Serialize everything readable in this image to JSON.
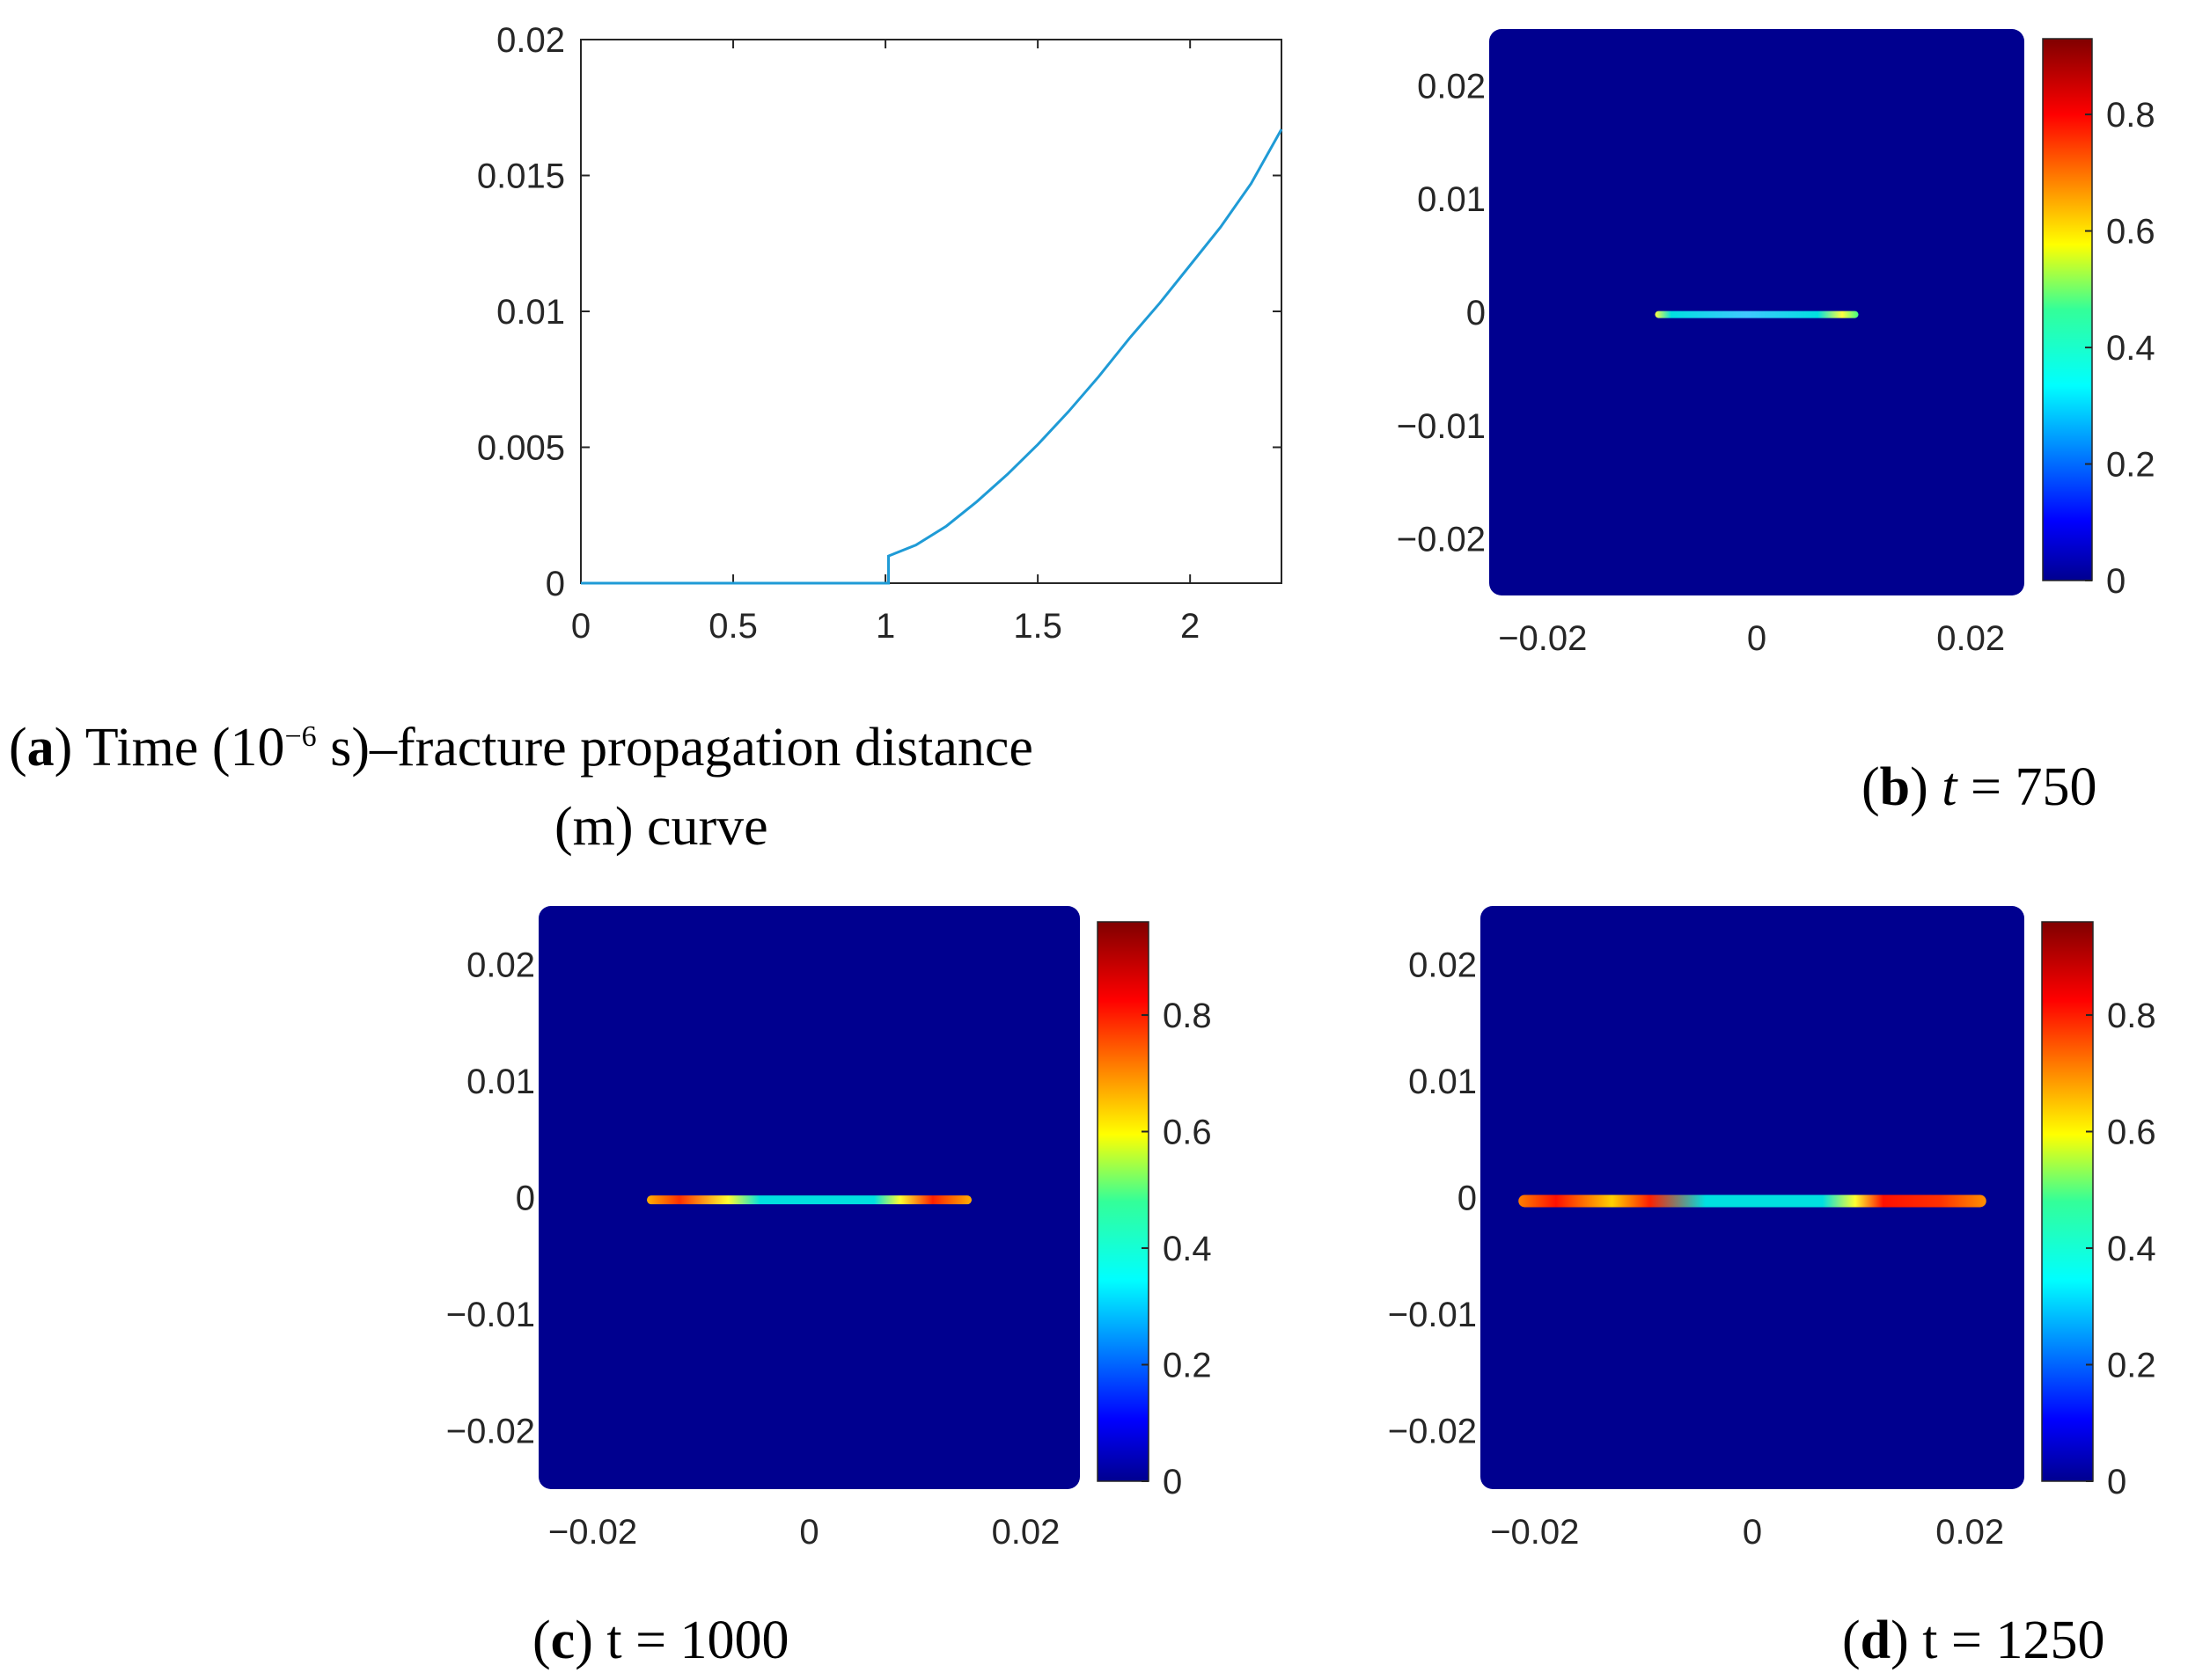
{
  "chart_data": [
    {
      "panel": "a",
      "type": "line",
      "xlim": [
        0,
        2.3
      ],
      "ylim": [
        0,
        0.02
      ],
      "xticks": [
        "0",
        "0.5",
        "1",
        "1.5",
        "2"
      ],
      "xtick_values": [
        0,
        0.5,
        1,
        1.5,
        2
      ],
      "yticks": [
        "0",
        "0.005",
        "0.01",
        "0.015",
        "0.02"
      ],
      "ytick_values": [
        0,
        0.005,
        0.01,
        0.015,
        0.02
      ],
      "series": [
        {
          "name": "fracture propagation distance",
          "color": "#1f9bd6",
          "x": [
            0,
            0.5,
            1.0,
            1.01,
            1.01,
            1.1,
            1.2,
            1.3,
            1.4,
            1.5,
            1.6,
            1.7,
            1.8,
            1.9,
            2.0,
            2.1,
            2.2,
            2.3
          ],
          "y": [
            0,
            0,
            0,
            0,
            0.001,
            0.0014,
            0.0021,
            0.003,
            0.004,
            0.0051,
            0.0063,
            0.0076,
            0.009,
            0.0103,
            0.0117,
            0.0131,
            0.0147,
            0.0167
          ]
        }
      ],
      "caption": {
        "label": "a",
        "line1": "Time (10",
        "exponent": "−6",
        "line1_rest": " s)–fracture propagation distance",
        "line2": "(m) curve"
      }
    },
    {
      "panel": "b",
      "type": "heatmap",
      "xlim": [
        -0.025,
        0.025
      ],
      "ylim": [
        -0.025,
        0.025
      ],
      "xticks": [
        "−0.02",
        "0",
        "0.02"
      ],
      "xtick_values": [
        -0.02,
        0,
        0.02
      ],
      "yticks": [
        "0.02",
        "0.01",
        "0",
        "−0.01",
        "−0.02"
      ],
      "ytick_values": [
        0.02,
        0.01,
        0,
        -0.01,
        -0.02
      ],
      "colorbar": {
        "range": [
          0,
          0.93
        ],
        "ticks": [
          "0",
          "0.2",
          "0.4",
          "0.6",
          "0.8"
        ],
        "tick_values": [
          0,
          0.2,
          0.4,
          0.6,
          0.8
        ]
      },
      "fracture": {
        "x_start": -0.0095,
        "x_end": 0.0095,
        "y": -0.0002,
        "dominant_value": 0.35,
        "tip_value": 0.55
      },
      "caption": {
        "label": "b",
        "var": "t",
        "text": " = 750"
      }
    },
    {
      "panel": "c",
      "type": "heatmap",
      "xlim": [
        -0.025,
        0.025
      ],
      "ylim": [
        -0.025,
        0.025
      ],
      "xticks": [
        "−0.02",
        "0",
        "0.02"
      ],
      "xtick_values": [
        -0.02,
        0,
        0.02
      ],
      "yticks": [
        "0.02",
        "0.01",
        "0",
        "−0.01",
        "−0.02"
      ],
      "ytick_values": [
        0.02,
        0.01,
        0,
        -0.01,
        -0.02
      ],
      "colorbar": {
        "range": [
          0,
          0.96
        ],
        "ticks": [
          "0",
          "0.2",
          "0.4",
          "0.6",
          "0.8"
        ],
        "tick_values": [
          0,
          0.2,
          0.4,
          0.6,
          0.8
        ]
      },
      "fracture": {
        "x_start": -0.015,
        "x_end": 0.015,
        "y": -0.0002,
        "dominant_value": 0.35,
        "tip_value": 0.85
      },
      "caption": {
        "label": "c",
        "var": "t",
        "text": " = 1000"
      }
    },
    {
      "panel": "d",
      "type": "heatmap",
      "xlim": [
        -0.025,
        0.025
      ],
      "ylim": [
        -0.025,
        0.025
      ],
      "xticks": [
        "−0.02",
        "0",
        "0.02"
      ],
      "xtick_values": [
        -0.02,
        0,
        0.02
      ],
      "yticks": [
        "0.02",
        "0.01",
        "0",
        "−0.01",
        "−0.02"
      ],
      "ytick_values": [
        0.02,
        0.01,
        0,
        -0.01,
        -0.02
      ],
      "colorbar": {
        "range": [
          0,
          0.96
        ],
        "ticks": [
          "0",
          "0.2",
          "0.4",
          "0.6",
          "0.8"
        ],
        "tick_values": [
          0,
          0.2,
          0.4,
          0.6,
          0.8
        ]
      },
      "fracture": {
        "x_start": -0.0215,
        "x_end": 0.0215,
        "y": -0.0003,
        "dominant_value": 0.35,
        "tip_value": 0.85
      },
      "caption": {
        "label": "d",
        "var": "t",
        "text": " = 1250"
      }
    }
  ],
  "colors": {
    "field_background": "#00008f",
    "axis_line": "#262626",
    "curve": "#1f9bd6"
  }
}
